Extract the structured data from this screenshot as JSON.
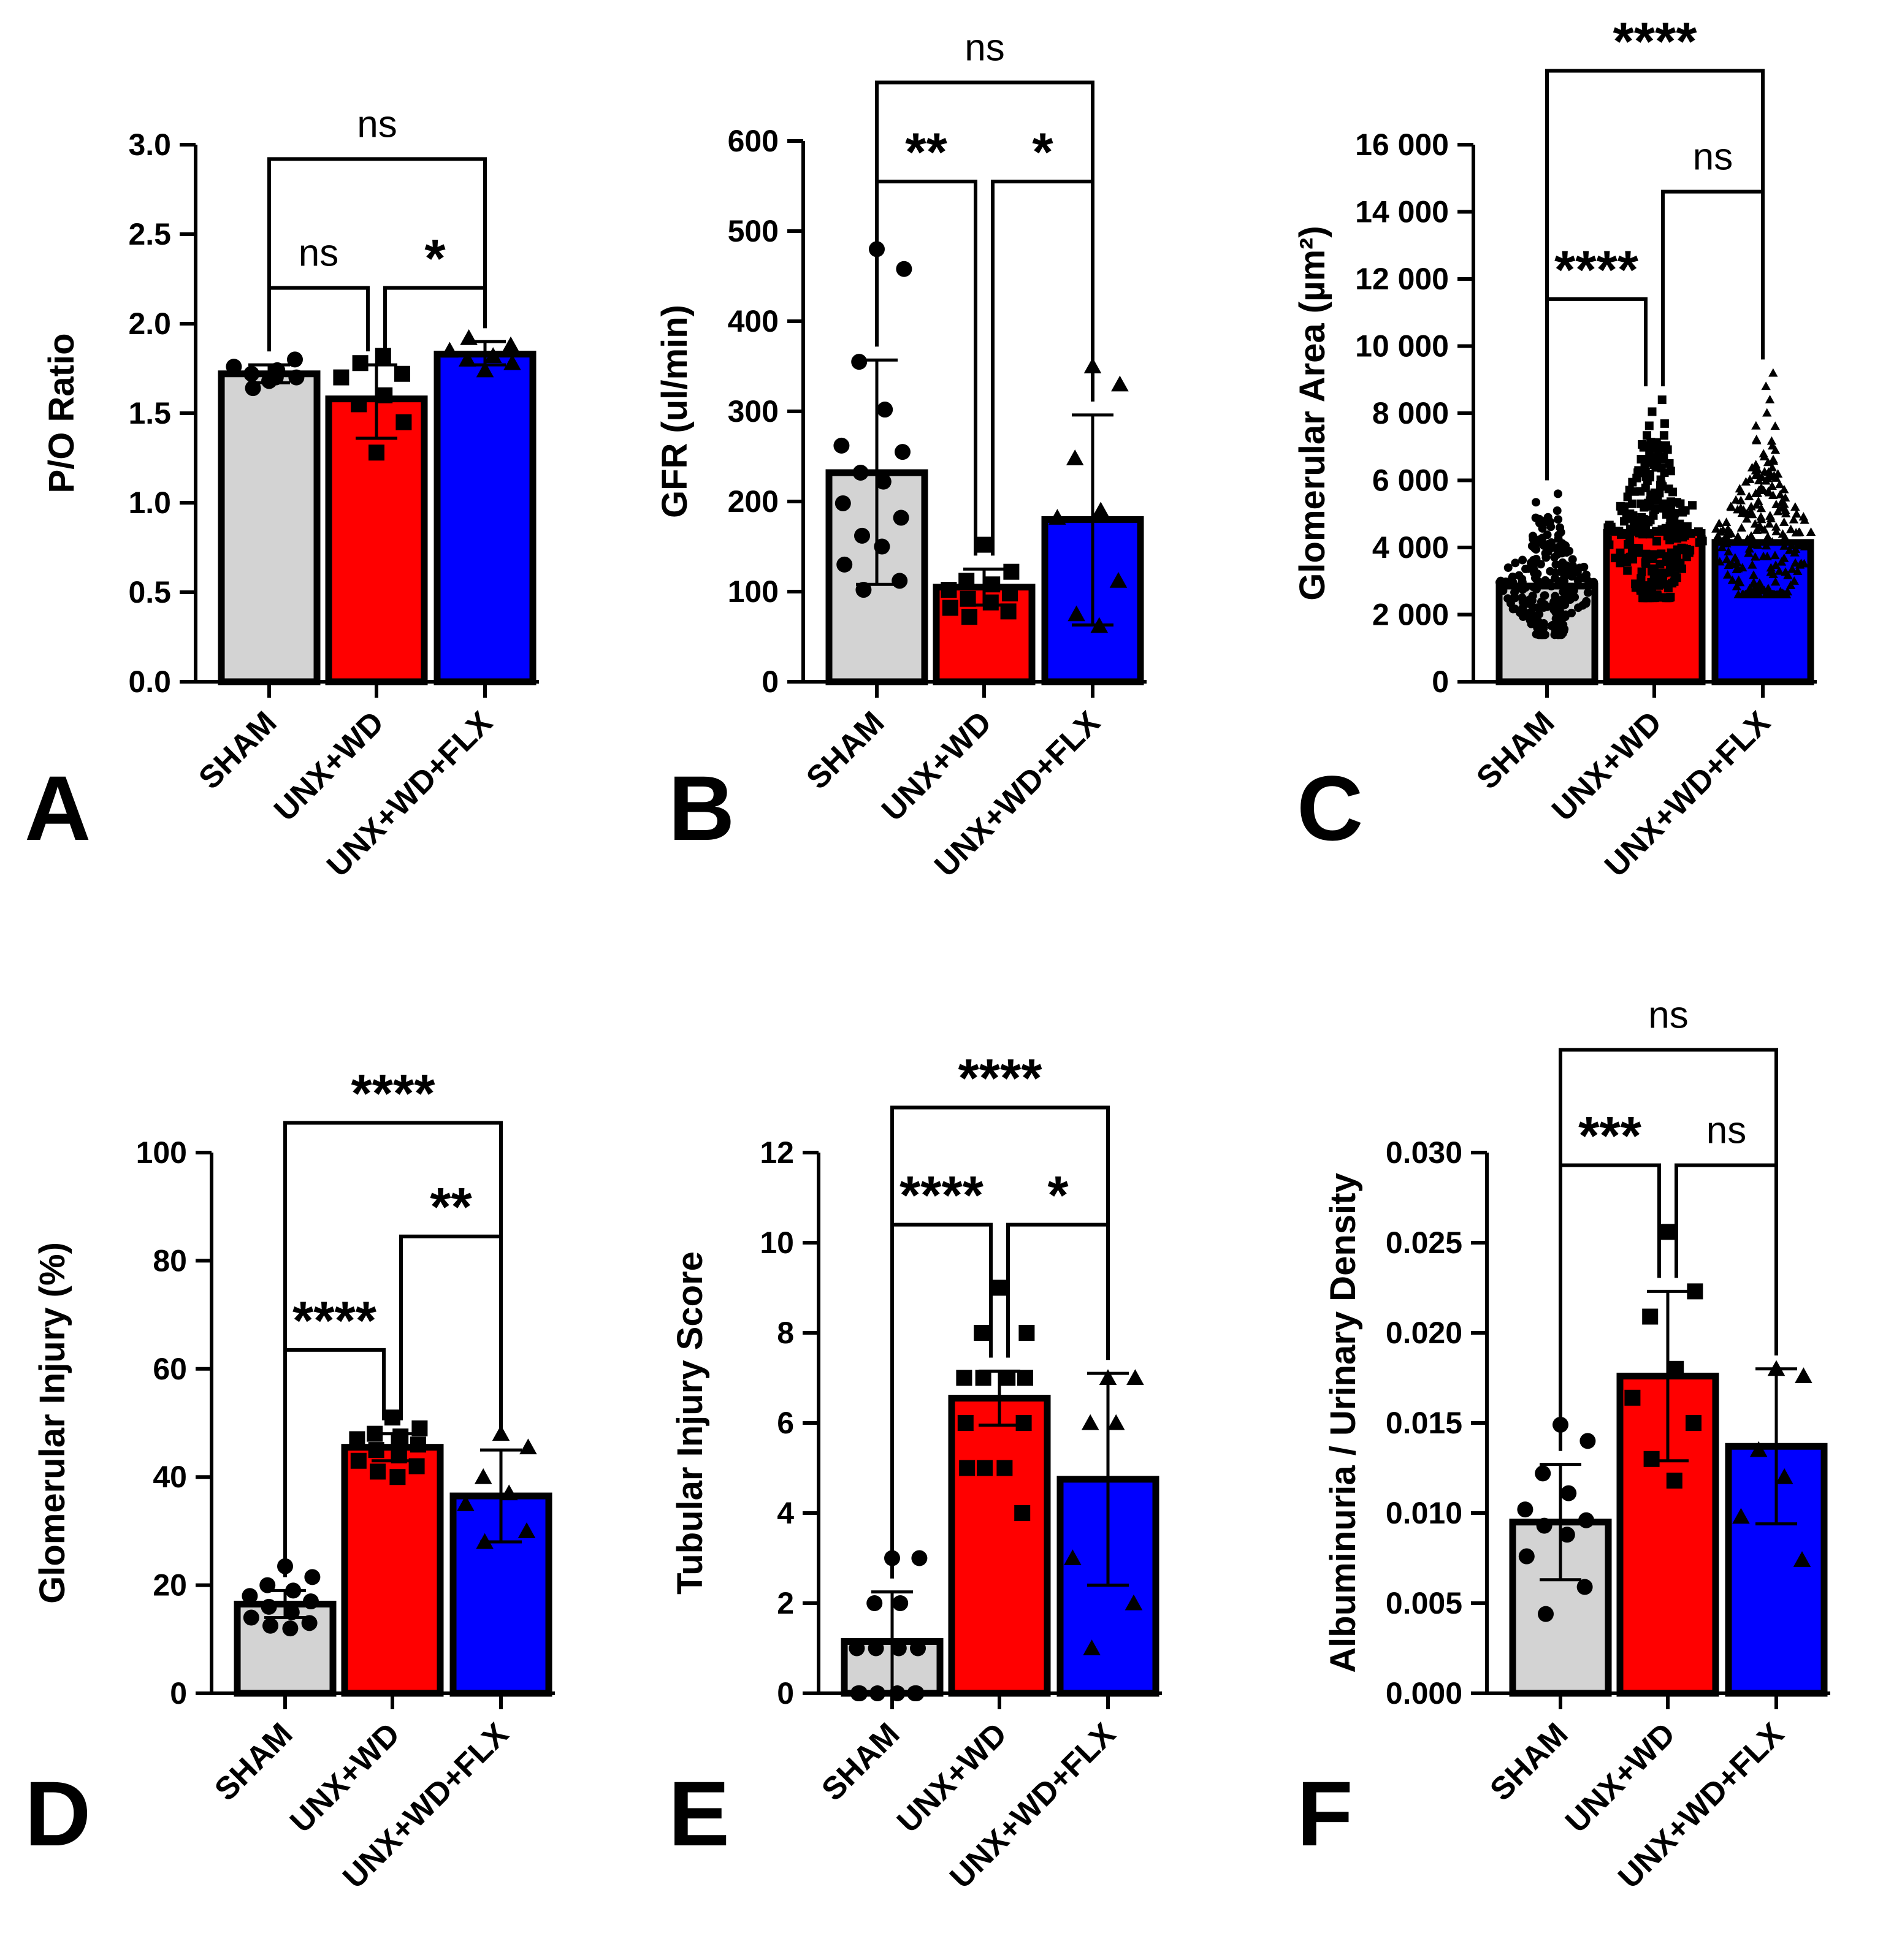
{
  "chart_data": [
    {
      "type": "bar",
      "panel": "A",
      "categories": [
        "SHAM",
        "UNX+WD",
        "UNX+WD+FLX"
      ],
      "ylabel": "P/O Ratio",
      "ylim": [
        0,
        3.0
      ],
      "yticks": [
        0.0,
        0.5,
        1.0,
        1.5,
        2.0,
        2.5,
        3.0
      ],
      "ytick_labels": [
        "0.0",
        "0.5",
        "1.0",
        "1.5",
        "2.0",
        "2.5",
        "3.0"
      ],
      "bar_colors": [
        "#d3d3d3",
        "#ff0000",
        "#0000ff"
      ],
      "markers": [
        "circle",
        "square",
        "triangle"
      ],
      "values": [
        1.72,
        1.58,
        1.83
      ],
      "error": [
        [
          1.67,
          1.77
        ],
        [
          1.36,
          1.77
        ],
        [
          1.77,
          1.9
        ]
      ],
      "points": [
        [
          1.68,
          1.7,
          1.72,
          1.74,
          1.76,
          1.8,
          1.64,
          1.7
        ],
        [
          1.28,
          1.45,
          1.55,
          1.6,
          1.7,
          1.72,
          1.78,
          1.82
        ],
        [
          1.74,
          1.78,
          1.8,
          1.82,
          1.85,
          1.88,
          1.92
        ]
      ],
      "significance": [
        {
          "from": 0,
          "to": 1,
          "label": "ns",
          "y": 2.2
        },
        {
          "from": 1,
          "to": 2,
          "label": "*",
          "y": 2.2
        },
        {
          "from": 0,
          "to": 2,
          "label": "ns",
          "y": 2.92
        }
      ]
    },
    {
      "type": "bar",
      "panel": "B",
      "categories": [
        "SHAM",
        "UNX+WD",
        "UNX+WD+FLX"
      ],
      "ylabel": "GFR (ul/min)",
      "ylim": [
        0,
        600
      ],
      "yticks": [
        0,
        100,
        200,
        300,
        400,
        500,
        600
      ],
      "ytick_labels": [
        "0",
        "100",
        "200",
        "300",
        "400",
        "500",
        "600"
      ],
      "bar_colors": [
        "#d3d3d3",
        "#ff0000",
        "#0000ff"
      ],
      "markers": [
        "circle",
        "square",
        "triangle"
      ],
      "values": [
        232,
        105,
        180
      ],
      "error": [
        [
          108,
          357
        ],
        [
          85,
          125
        ],
        [
          63,
          296
        ]
      ],
      "points": [
        [
          480,
          458,
          355,
          302,
          262,
          255,
          232,
          222,
          198,
          182,
          162,
          150,
          130,
          112,
          102
        ],
        [
          152,
          122,
          112,
          108,
          102,
          98,
          92,
          88,
          82,
          78,
          72
        ],
        [
          350,
          330,
          248,
          190,
          182,
          112,
          75,
          62
        ]
      ],
      "significance": [
        {
          "from": 0,
          "to": 1,
          "label": "**",
          "y": 555
        },
        {
          "from": 1,
          "to": 2,
          "label": "*",
          "y": 555
        },
        {
          "from": 0,
          "to": 2,
          "label": "ns",
          "y": 665
        }
      ]
    },
    {
      "type": "bar",
      "panel": "C",
      "categories": [
        "SHAM",
        "UNX+WD",
        "UNX+WD+FLX"
      ],
      "ylabel": "Glomerular Area (µm²)",
      "ylim": [
        0,
        16000
      ],
      "yticks": [
        0,
        2000,
        4000,
        6000,
        8000,
        10000,
        12000,
        14000,
        16000
      ],
      "ytick_labels": [
        "0",
        "2 000",
        "4 000",
        "6 000",
        "8 000",
        "10 000",
        "12 000",
        "14 000",
        "16 000"
      ],
      "bar_colors": [
        "#d3d3d3",
        "#ff0000",
        "#0000ff"
      ],
      "markers": [
        "circle",
        "square",
        "triangle"
      ],
      "values": [
        2850,
        4450,
        4150
      ],
      "points_range": [
        [
          1400,
          5600
        ],
        [
          2500,
          8400
        ],
        [
          2600,
          9200
        ]
      ],
      "significance": [
        {
          "from": 0,
          "to": 1,
          "label": "****",
          "y": 11400
        },
        {
          "from": 1,
          "to": 2,
          "label": "ns",
          "y": 14600
        },
        {
          "from": 0,
          "to": 2,
          "label": "****",
          "y": 18200
        }
      ]
    },
    {
      "type": "bar",
      "panel": "D",
      "categories": [
        "SHAM",
        "UNX+WD",
        "UNX+WD+FLX"
      ],
      "ylabel": "Glomerular Injury (%)",
      "ylim": [
        0,
        100
      ],
      "yticks": [
        0,
        20,
        40,
        60,
        80,
        100
      ],
      "ytick_labels": [
        "0",
        "20",
        "40",
        "60",
        "80",
        "100"
      ],
      "bar_colors": [
        "#d3d3d3",
        "#ff0000",
        "#0000ff"
      ],
      "markers": [
        "circle",
        "square",
        "triangle"
      ],
      "values": [
        16.5,
        45.5,
        36.5
      ],
      "error": [
        [
          14,
          19
        ],
        [
          43,
          48
        ],
        [
          28,
          45
        ]
      ],
      "points": [
        [
          23.5,
          21.5,
          20,
          19,
          18,
          17,
          16,
          15,
          14,
          13,
          12.5,
          12
        ],
        [
          51,
          49,
          48,
          47.5,
          47,
          46,
          45,
          44,
          43,
          42,
          41,
          40
        ],
        [
          48,
          45.5,
          40,
          37,
          35,
          30,
          28
        ]
      ],
      "significance": [
        {
          "from": 0,
          "to": 1,
          "label": "****",
          "y": 63.5
        },
        {
          "from": 1,
          "to": 2,
          "label": "**",
          "y": 84.5
        },
        {
          "from": 0,
          "to": 2,
          "label": "****",
          "y": 105.5
        }
      ]
    },
    {
      "type": "bar",
      "panel": "E",
      "categories": [
        "SHAM",
        "UNX+WD",
        "UNX+WD+FLX"
      ],
      "ylabel": "Tubular Injury Score",
      "ylim": [
        0,
        12
      ],
      "yticks": [
        0,
        2,
        4,
        6,
        8,
        10,
        12
      ],
      "ytick_labels": [
        "0",
        "2",
        "4",
        "6",
        "8",
        "10",
        "12"
      ],
      "bar_colors": [
        "#d3d3d3",
        "#ff0000",
        "#0000ff"
      ],
      "markers": [
        "circle",
        "square",
        "triangle"
      ],
      "values": [
        1.15,
        6.55,
        4.75
      ],
      "error": [
        [
          0,
          2.25
        ],
        [
          5.95,
          7.15
        ],
        [
          2.4,
          7.1
        ]
      ],
      "points": [
        [
          3,
          3,
          2,
          2,
          1,
          1,
          1,
          1,
          0,
          0,
          0,
          0,
          0,
          0
        ],
        [
          9,
          8,
          8,
          7,
          7,
          7,
          7,
          7,
          6,
          6,
          5,
          5,
          5,
          4
        ],
        [
          7,
          7,
          6,
          6,
          3,
          2,
          1
        ]
      ],
      "significance": [
        {
          "from": 0,
          "to": 1,
          "label": "****",
          "y": 10.4
        },
        {
          "from": 1,
          "to": 2,
          "label": "*",
          "y": 10.4
        },
        {
          "from": 0,
          "to": 2,
          "label": "****",
          "y": 13.0
        }
      ]
    },
    {
      "type": "bar",
      "panel": "F",
      "categories": [
        "SHAM",
        "UNX+WD",
        "UNX+WD+FLX"
      ],
      "ylabel": "Albuminuria / Urinary Density",
      "ylim": [
        0,
        0.03
      ],
      "yticks": [
        0,
        0.005,
        0.01,
        0.015,
        0.02,
        0.025,
        0.03
      ],
      "ytick_labels": [
        "0.000",
        "0.005",
        "0.010",
        "0.015",
        "0.020",
        "0.025",
        "0.030"
      ],
      "bar_colors": [
        "#d3d3d3",
        "#ff0000",
        "#0000ff"
      ],
      "markers": [
        "circle",
        "square",
        "triangle"
      ],
      "values": [
        0.0095,
        0.0176,
        0.0137
      ],
      "error": [
        [
          0.0063,
          0.0127
        ],
        [
          0.0129,
          0.0223
        ],
        [
          0.0094,
          0.018
        ]
      ],
      "points": [
        [
          0.0149,
          0.014,
          0.0122,
          0.0111,
          0.0102,
          0.0096,
          0.0093,
          0.0088,
          0.0076,
          0.0059,
          0.0044
        ],
        [
          0.0256,
          0.0223,
          0.0209,
          0.018,
          0.0164,
          0.015,
          0.013,
          0.0118
        ],
        [
          0.018,
          0.0176,
          0.0135,
          0.012,
          0.0098,
          0.0074
        ]
      ],
      "significance": [
        {
          "from": 0,
          "to": 1,
          "label": "***",
          "y": 0.0293
        },
        {
          "from": 1,
          "to": 2,
          "label": "ns",
          "y": 0.0293
        },
        {
          "from": 0,
          "to": 2,
          "label": "ns",
          "y": 0.0357
        }
      ]
    }
  ]
}
